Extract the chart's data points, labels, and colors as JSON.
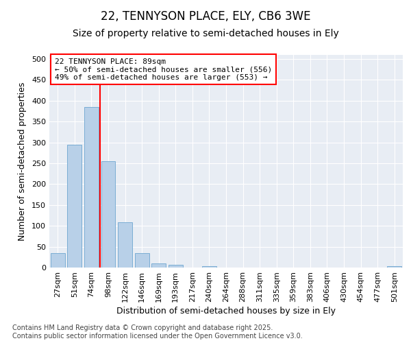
{
  "title": "22, TENNYSON PLACE, ELY, CB6 3WE",
  "subtitle": "Size of property relative to semi-detached houses in Ely",
  "xlabel": "Distribution of semi-detached houses by size in Ely",
  "ylabel": "Number of semi-detached properties",
  "categories": [
    "27sqm",
    "51sqm",
    "74sqm",
    "98sqm",
    "122sqm",
    "146sqm",
    "169sqm",
    "193sqm",
    "217sqm",
    "240sqm",
    "264sqm",
    "288sqm",
    "311sqm",
    "335sqm",
    "359sqm",
    "383sqm",
    "406sqm",
    "430sqm",
    "454sqm",
    "477sqm",
    "501sqm"
  ],
  "values": [
    35,
    295,
    385,
    255,
    108,
    35,
    10,
    6,
    0,
    4,
    0,
    0,
    0,
    0,
    0,
    0,
    0,
    0,
    0,
    0,
    4
  ],
  "bar_color": "#b8d0e8",
  "bar_edge_color": "#7aadd4",
  "vline_color": "red",
  "vline_position": 2.5,
  "annotation_box_text": "22 TENNYSON PLACE: 89sqm\n← 50% of semi-detached houses are smaller (556)\n49% of semi-detached houses are larger (553) →",
  "annotation_box_color": "white",
  "annotation_box_edge_color": "red",
  "ylim": [
    0,
    510
  ],
  "yticks": [
    0,
    50,
    100,
    150,
    200,
    250,
    300,
    350,
    400,
    450,
    500
  ],
  "background_color": "#e8edf4",
  "footer_text": "Contains HM Land Registry data © Crown copyright and database right 2025.\nContains public sector information licensed under the Open Government Licence v3.0.",
  "title_fontsize": 12,
  "subtitle_fontsize": 10,
  "label_fontsize": 9,
  "tick_fontsize": 8,
  "annotation_fontsize": 8,
  "footer_fontsize": 7
}
